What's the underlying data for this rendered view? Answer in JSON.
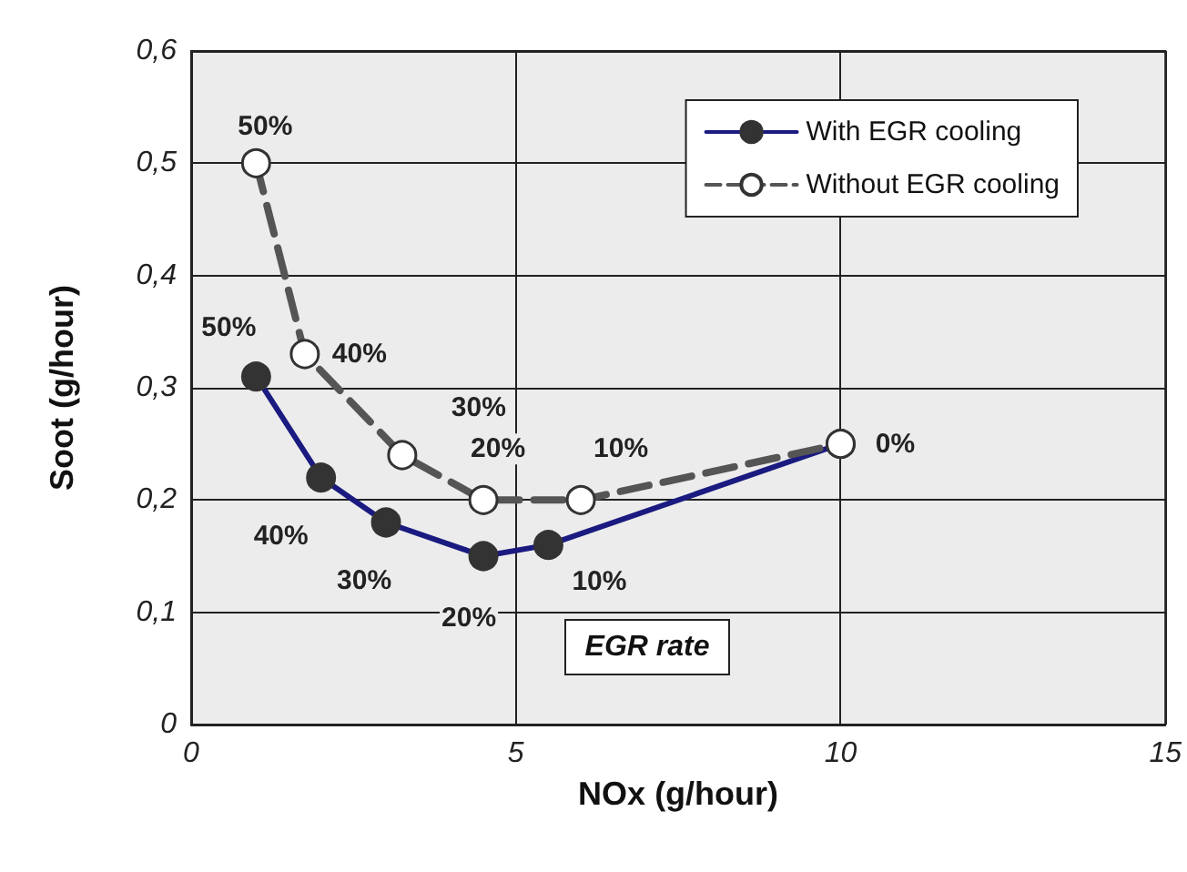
{
  "chart_data": {
    "type": "line",
    "xlabel": "NOx (g/hour)",
    "ylabel": "Soot (g/hour)",
    "xlim": [
      0,
      15
    ],
    "xticks": [
      0,
      5,
      10,
      15
    ],
    "ylim": [
      0,
      0.6
    ],
    "yticks": [
      0,
      {
        "value": 0.1,
        "label": "0,1"
      },
      {
        "value": 0.2,
        "label": "0,2"
      },
      {
        "value": 0.3,
        "label": "0,3"
      },
      {
        "value": 0.4,
        "label": "0,4"
      },
      {
        "value": 0.5,
        "label": "0,5"
      },
      {
        "value": 0.6,
        "label": "0,6"
      }
    ],
    "grid": true,
    "legend": "top right",
    "marker": "circle",
    "annotations": [
      "EGR rate",
      {
        "text": "50%",
        "x": 1,
        "y": 0.31
      },
      {
        "text": "40%",
        "x": 2,
        "y": 0.22
      },
      {
        "text": "30%",
        "x": 3,
        "y": 0.18
      },
      {
        "text": "20%",
        "x": 4.5,
        "y": 0.15
      },
      {
        "text": "10%",
        "x": 5.5,
        "y": 0.16
      },
      {
        "text": "50%",
        "x": 1,
        "y": 0.5
      },
      {
        "text": "40%",
        "x": 1.75,
        "y": 0.33
      },
      {
        "text": "30%",
        "x": 3.25,
        "y": 0.24
      },
      {
        "text": "20%",
        "x": 4.5,
        "y": 0.2
      },
      {
        "text": "10%",
        "x": 6,
        "y": 0.2
      },
      {
        "text": "0%",
        "x": 10,
        "y": 0.25
      }
    ],
    "series": [
      {
        "name": "With EGR cooling",
        "color": "#1a1a80",
        "line_style": "solid",
        "x": [
          1,
          2,
          3,
          4.5,
          5.5,
          10
        ],
        "values": [
          0.31,
          0.22,
          0.18,
          0.15,
          0.16,
          0.25
        ]
      },
      {
        "name": "Without EGR cooling",
        "color": "#555555",
        "line_style": "dashed",
        "x": [
          1,
          1.75,
          3.25,
          4.5,
          6,
          10
        ],
        "values": [
          0.5,
          0.33,
          0.24,
          0.2,
          0.2,
          0.25
        ]
      }
    ]
  }
}
